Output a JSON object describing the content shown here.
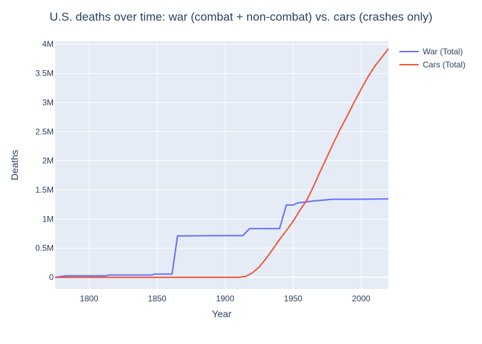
{
  "chart_data": {
    "type": "line",
    "title": "U.S. deaths over time: war (combat + non-combat) vs. cars (crashes only)",
    "xlabel": "Year",
    "ylabel": "Deaths",
    "xlim": [
      1775,
      2020
    ],
    "ylim": [
      -200000,
      4050000
    ],
    "x_ticks": [
      1800,
      1850,
      1900,
      1950,
      2000
    ],
    "x_tick_labels": [
      "1800",
      "1850",
      "1900",
      "1950",
      "2000"
    ],
    "y_ticks": [
      0,
      500000,
      1000000,
      1500000,
      2000000,
      2500000,
      3000000,
      3500000,
      4000000
    ],
    "y_tick_labels": [
      "0",
      "0.5M",
      "1M",
      "1.5M",
      "2M",
      "2.5M",
      "3M",
      "3.5M",
      "4M"
    ],
    "grid": true,
    "legend_position": "top-right-outside",
    "plot_bg": "#E5ECF6",
    "grid_color": "#ffffff",
    "series": [
      {
        "name": "War (Total)",
        "color": "#636EFA",
        "x": [
          1775,
          1783,
          1812,
          1815,
          1846,
          1848,
          1861,
          1865,
          1898,
          1913,
          1918,
          1940,
          1945,
          1950,
          1953,
          1955,
          1965,
          1975,
          1978,
          1991,
          2001,
          2020
        ],
        "y": [
          0,
          25000,
          25000,
          40000,
          40000,
          55000,
          55000,
          710000,
          715000,
          715000,
          835000,
          835000,
          1240000,
          1240000,
          1275000,
          1280000,
          1310000,
          1330000,
          1340000,
          1340000,
          1341000,
          1345000
        ]
      },
      {
        "name": "Cars (Total)",
        "color": "#EF553B",
        "x": [
          1775,
          1800,
          1899,
          1910,
          1915,
          1920,
          1925,
          1930,
          1935,
          1940,
          1945,
          1950,
          1955,
          1960,
          1965,
          1970,
          1975,
          1980,
          1985,
          1990,
          1995,
          2000,
          2005,
          2010,
          2015,
          2020
        ],
        "y": [
          0,
          0,
          0,
          0,
          15000,
          75000,
          175000,
          320000,
          480000,
          650000,
          800000,
          960000,
          1150000,
          1320000,
          1560000,
          1820000,
          2070000,
          2320000,
          2560000,
          2780000,
          3010000,
          3230000,
          3440000,
          3620000,
          3770000,
          3920000
        ]
      }
    ]
  }
}
